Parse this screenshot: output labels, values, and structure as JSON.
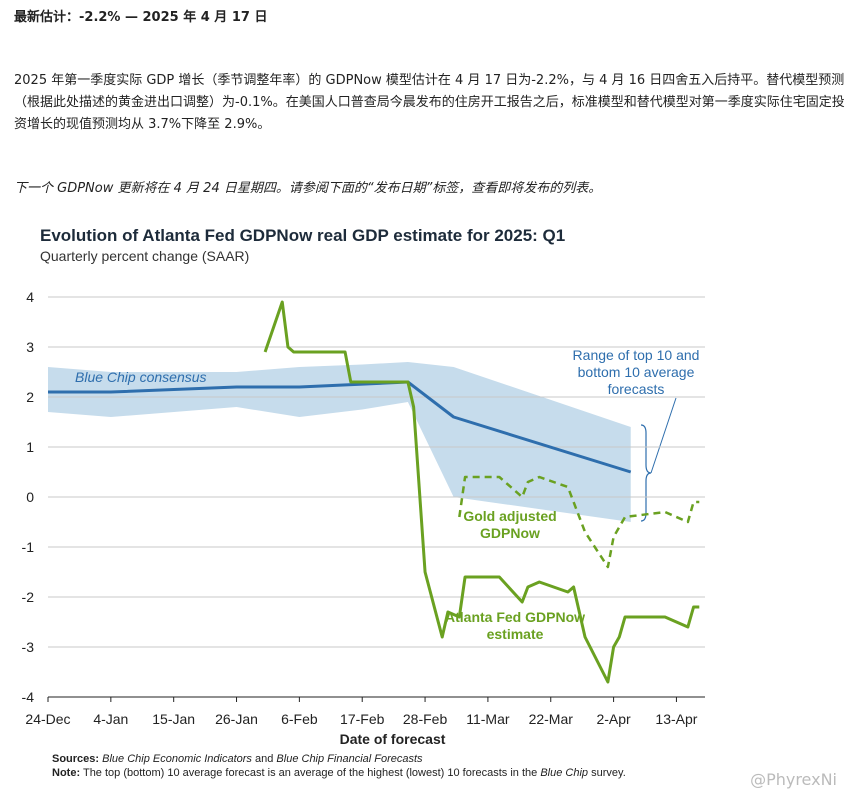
{
  "header": {
    "title": "最新估计：-2.2% — 2025 年 4 月 17 日"
  },
  "paragraph": "2025 年第一季度实际 GDP 增长（季节调整年率）的 GDPNow 模型估计在 4 月 17 日为-2.2%，与 4 月 16 日四舍五入后持平。替代模型预测（根据此处描述的黄金进出口调整）为-0.1%。在美国人口普查局今晨发布的住房开工报告之后，标准模型和替代模型对第一季度实际住宅固定投资增长的现值预测均从 3.7%下降至 2.9%。",
  "next_update": "下一个 GDPNow 更新将在 4 月 24 日星期四。请参阅下面的“发布日期”标签，查看即将发布的列表。",
  "chart_data": {
    "type": "line",
    "title": "Evolution of Atlanta Fed GDPNow real GDP estimate for 2025: Q1",
    "subtitle": "Quarterly percent change (SAAR)",
    "xlabel": "Date of forecast",
    "xlim": [
      "24-Dec",
      "18-Apr"
    ],
    "xticks": [
      "24-Dec",
      "4-Jan",
      "15-Jan",
      "26-Jan",
      "6-Feb",
      "17-Feb",
      "28-Feb",
      "11-Mar",
      "22-Mar",
      "2-Apr",
      "13-Apr"
    ],
    "ylim": [
      -4,
      4
    ],
    "yticks": [
      -4,
      -3,
      -2,
      -1,
      0,
      1,
      2,
      3,
      4
    ],
    "grid": true,
    "band": {
      "name": "Range of top 10 and bottom 10 average forecasts",
      "color": "#c6dcec",
      "x": [
        "24-Dec",
        "4-Jan",
        "26-Jan",
        "6-Feb",
        "17-Feb",
        "25-Feb",
        "5-Mar",
        "5-Apr"
      ],
      "upper": [
        2.6,
        2.5,
        2.5,
        2.6,
        2.65,
        2.7,
        2.6,
        1.4
      ],
      "lower": [
        1.7,
        1.6,
        1.8,
        1.6,
        1.75,
        1.9,
        0,
        -0.5
      ]
    },
    "series": [
      {
        "name": "Blue Chip consensus",
        "color": "#2e6ead",
        "x": [
          "24-Dec",
          "4-Jan",
          "26-Jan",
          "6-Feb",
          "25-Feb",
          "5-Mar",
          "5-Apr"
        ],
        "values": [
          2.1,
          2.1,
          2.2,
          2.2,
          2.3,
          1.6,
          0.5
        ]
      },
      {
        "name": "Gold adjusted GDPNow",
        "color": "#6aa121",
        "dashed": true,
        "x": [
          "6-Mar",
          "7-Mar",
          "13-Mar",
          "17-Mar",
          "18-Mar",
          "20-Mar",
          "25-Mar",
          "28-Mar",
          "1-Apr",
          "2-Apr",
          "4-Apr",
          "11-Apr",
          "15-Apr",
          "16-Apr",
          "17-Apr"
        ],
        "values": [
          -0.4,
          0.4,
          0.4,
          0,
          0.3,
          0.4,
          0.2,
          -0.7,
          -1.4,
          -0.8,
          -0.4,
          -0.3,
          -0.5,
          -0.1,
          -0.1
        ]
      },
      {
        "name": "Atlanta Fed GDPNow estimate",
        "color": "#6aa121",
        "x": [
          "31-Jan",
          "3-Feb",
          "4-Feb",
          "5-Feb",
          "14-Feb",
          "15-Feb",
          "25-Feb",
          "26-Feb",
          "28-Feb",
          "3-Mar",
          "4-Mar",
          "6-Mar",
          "7-Mar",
          "13-Mar",
          "17-Mar",
          "18-Mar",
          "20-Mar",
          "25-Mar",
          "26-Mar",
          "28-Mar",
          "1-Apr",
          "2-Apr",
          "3-Apr",
          "4-Apr",
          "11-Apr",
          "15-Apr",
          "16-Apr",
          "17-Apr"
        ],
        "values": [
          2.9,
          3.9,
          3.0,
          2.9,
          2.9,
          2.3,
          2.3,
          1.8,
          -1.5,
          -2.8,
          -2.3,
          -2.4,
          -1.6,
          -1.6,
          -2.1,
          -1.8,
          -1.7,
          -1.9,
          -1.8,
          -2.8,
          -3.7,
          -3.0,
          -2.8,
          -2.4,
          -2.4,
          -2.6,
          -2.2,
          -2.2
        ]
      }
    ],
    "sources": {
      "label": "Sources:",
      "title1": "Blue Chip Economic Indicators",
      "and": "and",
      "title2": "Blue Chip Financial Forecasts"
    },
    "note": {
      "label": "Note:",
      "text": "The top (bottom) 10 average forecast is an average of the highest (lowest) 10 forecasts in the",
      "italic": "Blue Chip",
      "end": "survey."
    }
  },
  "watermark": "@PhyrexNi"
}
